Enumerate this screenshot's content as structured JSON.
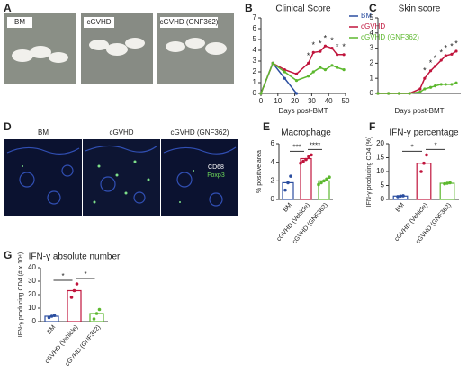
{
  "panels": [
    "A",
    "B",
    "C",
    "D",
    "E",
    "F",
    "G"
  ],
  "photos": [
    "BM",
    "cGVHD",
    "cGVHD (GNF362)"
  ],
  "micrographs": {
    "labels": [
      "BM",
      "cGVHD",
      "cGVHD (GNF362)"
    ],
    "stains": [
      "CD68",
      "Foxp3"
    ]
  },
  "chart_data": [
    {
      "type": "line",
      "title": "Clinical Score",
      "x_label": "Days post-BMT",
      "x": [
        0,
        7,
        14,
        21,
        28,
        31,
        35,
        38,
        42,
        45,
        49
      ],
      "xlim": [
        0,
        50
      ],
      "xticks": [
        0,
        10,
        20,
        30,
        40,
        50
      ],
      "ylim": [
        0,
        7
      ],
      "yticks": [
        0,
        1,
        2,
        3,
        4,
        5,
        6,
        7
      ],
      "series": [
        {
          "name": "BM",
          "color": "#2b4ea0",
          "values": [
            0,
            2.8,
            1.4,
            0,
            null,
            null,
            null,
            null,
            null,
            null,
            null
          ]
        },
        {
          "name": "cGVHD",
          "color": "#c0143c",
          "values": [
            0,
            2.8,
            2.2,
            1.8,
            2.8,
            3.8,
            3.9,
            4.4,
            4.2,
            3.6,
            3.6
          ]
        },
        {
          "name": "cGVHD (GNF362)",
          "color": "#5cb82e",
          "values": [
            0,
            2.8,
            2.0,
            1.2,
            1.6,
            2.0,
            2.4,
            2.2,
            2.6,
            2.4,
            2.2
          ]
        }
      ],
      "annotations": [
        "*",
        "*",
        "*",
        "*",
        "*",
        "*",
        "*"
      ]
    },
    {
      "type": "line",
      "title": "Skin score",
      "x_label": "Days post-BMT",
      "x": [
        0,
        7,
        14,
        21,
        28,
        31,
        35,
        38,
        42,
        45,
        49,
        52
      ],
      "xlim": [
        0,
        55
      ],
      "ylim": [
        0,
        5
      ],
      "yticks": [
        0,
        1,
        2,
        3,
        4,
        5
      ],
      "series": [
        {
          "name": "cGVHD",
          "color": "#c0143c",
          "values": [
            0,
            0,
            0,
            0,
            0.3,
            1.0,
            1.5,
            1.8,
            2.2,
            2.5,
            2.6,
            2.8
          ]
        },
        {
          "name": "cGVHD (GNF362)",
          "color": "#5cb82e",
          "values": [
            0,
            0,
            0,
            0,
            0.1,
            0.3,
            0.4,
            0.5,
            0.6,
            0.6,
            0.6,
            0.7
          ]
        }
      ],
      "annotations": [
        "*",
        "*",
        "*",
        "*",
        "*",
        "*",
        "*"
      ]
    },
    {
      "type": "bar",
      "title": "Macrophage",
      "y_label": "% positive area",
      "categories": [
        "BM",
        "cGVHD (Vehicle)",
        "cGVHD (GNF362)"
      ],
      "values": [
        1.8,
        4.4,
        2.0
      ],
      "colors": [
        "#2b4ea0",
        "#c0143c",
        "#5cb82e"
      ],
      "points": [
        [
          1.0,
          1.8,
          2.5
        ],
        [
          3.9,
          4.1,
          4.3,
          4.6,
          4.8
        ],
        [
          1.6,
          1.8,
          2.0,
          2.2,
          2.4
        ]
      ],
      "ylim": [
        0,
        6
      ],
      "yticks": [
        0,
        2,
        4,
        6
      ],
      "annotations": [
        "***",
        "****"
      ]
    },
    {
      "type": "bar",
      "title": "IFN-γ percentage",
      "y_label": "IFN-γ producing CD4 (%)",
      "categories": [
        "BM",
        "cGVHD (Vehicle)",
        "cGVHD (GNF362)"
      ],
      "values": [
        1.2,
        13,
        5.8
      ],
      "colors": [
        "#2b4ea0",
        "#c0143c",
        "#5cb82e"
      ],
      "points": [
        [
          1.0,
          1.2,
          1.3
        ],
        [
          10,
          13,
          16
        ],
        [
          5.6,
          5.8,
          6.0
        ]
      ],
      "ylim": [
        0,
        20
      ],
      "yticks": [
        0,
        5,
        10,
        15,
        20
      ],
      "annotations": [
        "*",
        "*"
      ]
    },
    {
      "type": "bar",
      "title": "IFN-γ absolute number",
      "y_label": "IFN-γ producing CD4 (# x 10⁴)",
      "categories": [
        "BM",
        "cGVHD (Vehicle)",
        "cGVHD (GNF362)"
      ],
      "values": [
        4,
        23,
        6
      ],
      "colors": [
        "#2b4ea0",
        "#c0143c",
        "#5cb82e"
      ],
      "points": [
        [
          3,
          4,
          4.5
        ],
        [
          18,
          23,
          28
        ],
        [
          2,
          6,
          9
        ]
      ],
      "ylim": [
        0,
        40
      ],
      "yticks": [
        0,
        10,
        20,
        30,
        40
      ],
      "annotations": [
        "*",
        "*"
      ]
    }
  ]
}
